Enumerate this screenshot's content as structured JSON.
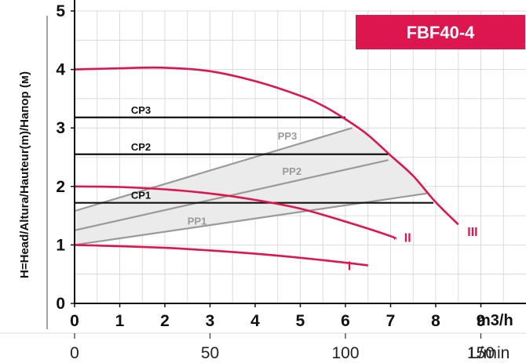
{
  "chart_data": {
    "type": "line",
    "title": "FBF40-4",
    "ylabel": "H=Head/Altura/Hauteur(m)/Напор (м)",
    "xlabel": "m3/h",
    "x2label": "L/min",
    "xlim": [
      0,
      10
    ],
    "ylim": [
      0,
      5
    ],
    "x_ticks": [
      "0",
      "1",
      "2",
      "3",
      "4",
      "5",
      "6",
      "7",
      "8",
      "9"
    ],
    "y_ticks": [
      "0",
      "1",
      "2",
      "3",
      "4",
      "5"
    ],
    "x2_ticks": [
      "0",
      "50",
      "100",
      "150"
    ],
    "grid": true,
    "series": [
      {
        "name": "I",
        "color": "#dd1650",
        "x": [
          0,
          2,
          4,
          5.5,
          6.5
        ],
        "y": [
          1.0,
          0.95,
          0.85,
          0.74,
          0.65
        ]
      },
      {
        "name": "II",
        "color": "#dd1650",
        "x": [
          0,
          1,
          2,
          3,
          4,
          5,
          6,
          7,
          7.1
        ],
        "y": [
          2.0,
          1.99,
          1.95,
          1.88,
          1.77,
          1.62,
          1.4,
          1.15,
          1.1
        ]
      },
      {
        "name": "III",
        "color": "#dd1650",
        "x": [
          0,
          1,
          2,
          3,
          4,
          5,
          5.5,
          6,
          6.5,
          7,
          7.5,
          8,
          8.5
        ],
        "y": [
          4.0,
          4.02,
          4.03,
          3.97,
          3.8,
          3.55,
          3.38,
          3.15,
          2.88,
          2.53,
          2.18,
          1.73,
          1.35
        ]
      }
    ],
    "cp_lines": [
      {
        "name": "CP3",
        "y": 3.18,
        "x_end": 6.0
      },
      {
        "name": "CP2",
        "y": 2.55,
        "x_end": 6.95
      },
      {
        "name": "CP1",
        "y": 1.72,
        "x_end": 7.95
      }
    ],
    "pp_lines": [
      {
        "name": "PP3",
        "x": [
          0,
          6.15
        ],
        "y": [
          1.58,
          3.0
        ]
      },
      {
        "name": "PP2",
        "x": [
          0,
          6.95
        ],
        "y": [
          1.25,
          2.45
        ]
      },
      {
        "name": "PP1",
        "x": [
          0,
          7.8
        ],
        "y": [
          1.0,
          1.88
        ]
      }
    ],
    "labels": {
      "I": "I",
      "II": "II",
      "III": "III",
      "CP1": "CP1",
      "CP2": "CP2",
      "CP3": "CP3",
      "PP1": "PP1",
      "PP2": "PP2",
      "PP3": "PP3"
    },
    "colors": {
      "curves": "#dd1650",
      "cp": "#111111",
      "pp": "#9a9a9a",
      "region": "#ebebeb",
      "title_bg": "#dd1650",
      "grid": "#d3d3d3"
    }
  }
}
